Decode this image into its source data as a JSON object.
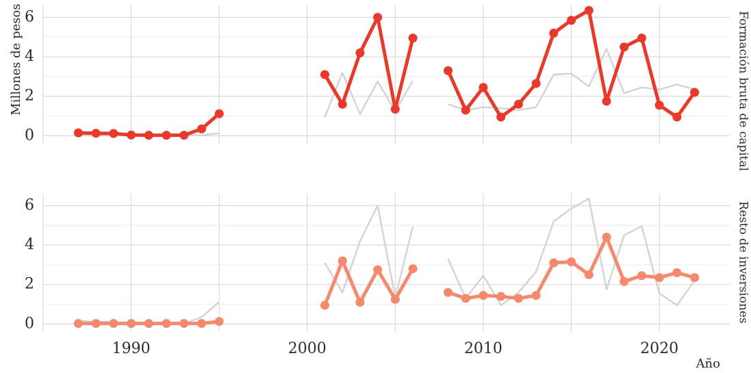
{
  "chart_data": {
    "type": "line",
    "xlabel": "Año",
    "ylabel": "Millones de pesos",
    "xlim": [
      1985,
      2024
    ],
    "ylim": [
      -0.4,
      6.6
    ],
    "x_ticks": [
      1990,
      2000,
      2010,
      2020
    ],
    "y_ticks": [
      0,
      2,
      4,
      6
    ],
    "grid": true,
    "legend": "none",
    "facet_labels": [
      "Formación bruta de capital",
      "Resto de inversiones"
    ],
    "colors": {
      "formacion": "#e8392a",
      "resto": "#f4896e",
      "context": "#d3d3d3",
      "grid": "#d6d6d6"
    },
    "series": [
      {
        "key": "formacion",
        "segments": [
          {
            "x": [
              1987,
              1988,
              1989,
              1990,
              1991,
              1992,
              1993,
              1994,
              1995
            ],
            "y": [
              0.15,
              0.13,
              0.12,
              0.04,
              0.03,
              0.03,
              0.03,
              0.35,
              1.12
            ]
          },
          {
            "x": [
              2001,
              2002,
              2003,
              2004,
              2005,
              2006
            ],
            "y": [
              3.1,
              1.6,
              4.2,
              6.0,
              1.35,
              4.95
            ]
          },
          {
            "x": [
              2008,
              2009,
              2010,
              2011,
              2012,
              2013,
              2014,
              2015,
              2016,
              2017,
              2018,
              2019,
              2020,
              2021,
              2022
            ],
            "y": [
              3.3,
              1.3,
              2.45,
              0.95,
              1.6,
              2.65,
              5.2,
              5.85,
              6.35,
              1.75,
              4.5,
              4.95,
              1.55,
              0.95,
              2.2
            ]
          }
        ]
      },
      {
        "key": "resto",
        "segments": [
          {
            "x": [
              1987,
              1988,
              1989,
              1990,
              1991,
              1992,
              1993,
              1994,
              1995
            ],
            "y": [
              0.03,
              0.03,
              0.03,
              0.03,
              0.03,
              0.03,
              0.03,
              0.03,
              0.13
            ]
          },
          {
            "x": [
              2001,
              2002,
              2003,
              2004,
              2005,
              2006
            ],
            "y": [
              0.95,
              3.2,
              1.1,
              2.75,
              1.25,
              2.8
            ]
          },
          {
            "x": [
              2008,
              2009,
              2010,
              2011,
              2012,
              2013,
              2014,
              2015,
              2016,
              2017,
              2018,
              2019,
              2020,
              2021,
              2022
            ],
            "y": [
              1.6,
              1.3,
              1.45,
              1.4,
              1.3,
              1.45,
              3.1,
              3.15,
              2.5,
              4.4,
              2.15,
              2.45,
              2.35,
              2.6,
              2.35
            ]
          }
        ]
      }
    ]
  }
}
